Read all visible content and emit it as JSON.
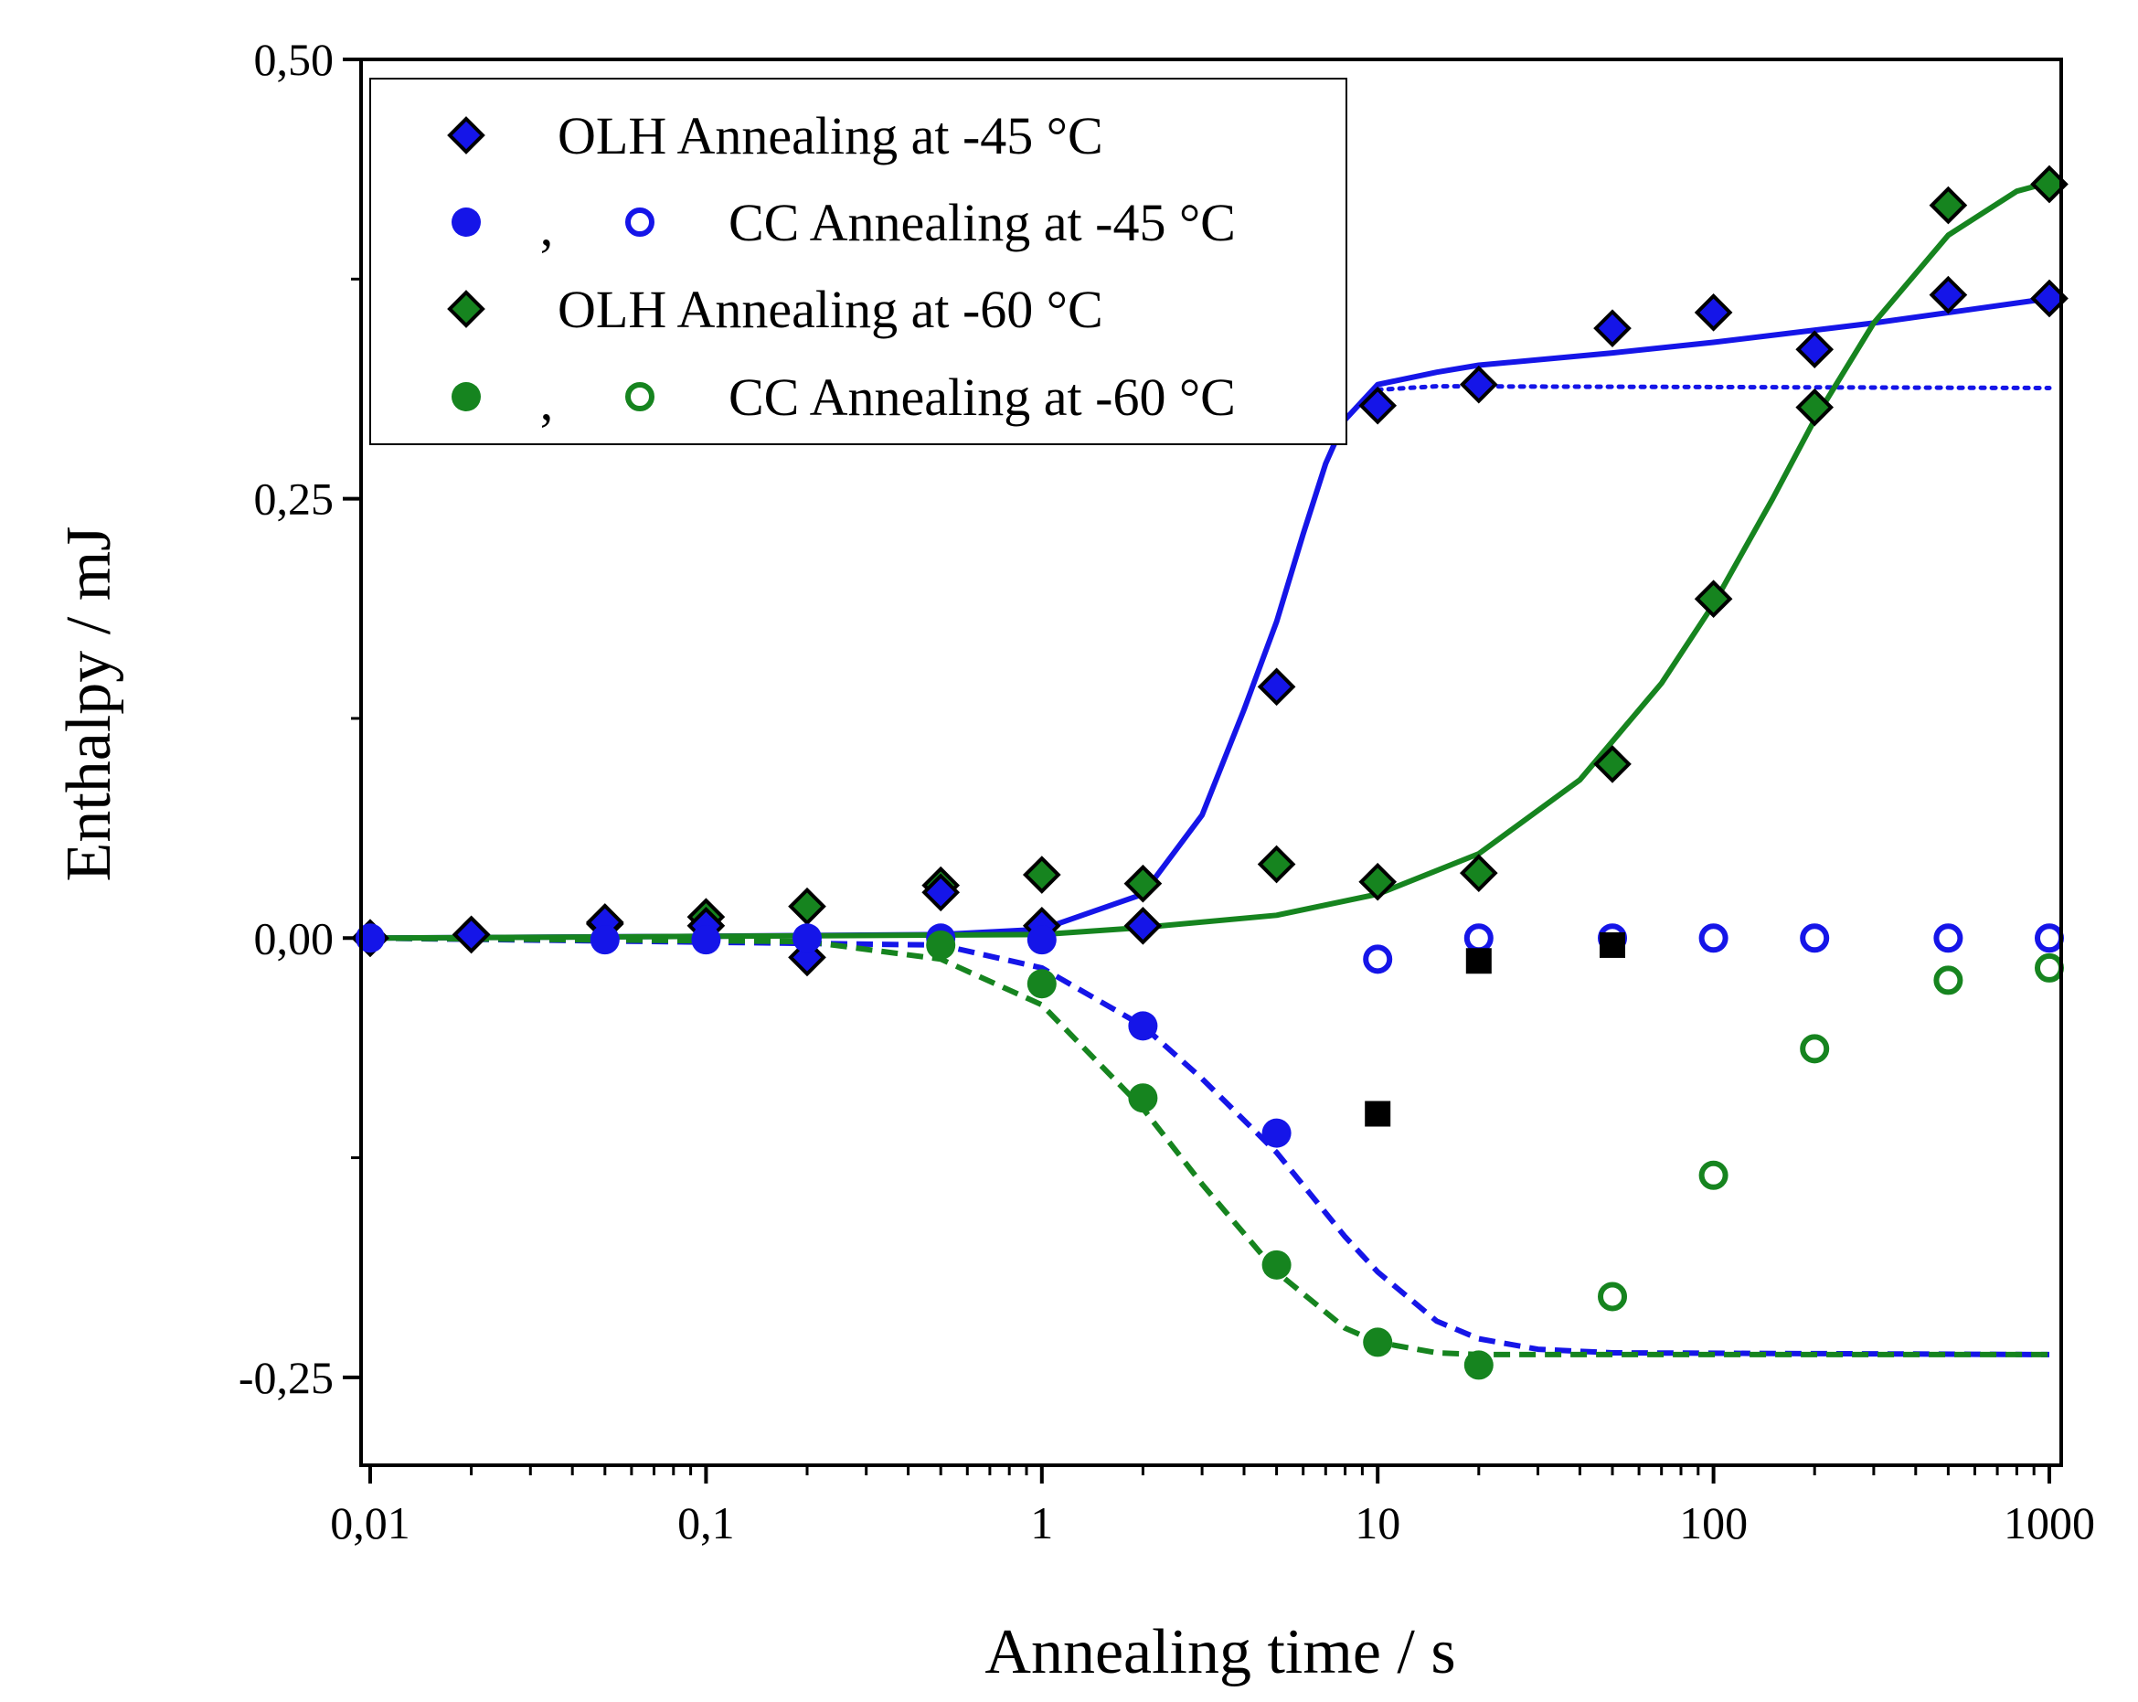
{
  "chart_data": {
    "type": "scatter",
    "xscale": "log",
    "xlim": [
      0.01,
      1000
    ],
    "ylim": [
      -0.3,
      0.5
    ],
    "xlabel": "Annealing time / s",
    "ylabel": "Enthalpy / mJ",
    "xticks": [
      {
        "value": 0.01,
        "label": "0,01"
      },
      {
        "value": 0.1,
        "label": "0,1"
      },
      {
        "value": 1,
        "label": "1"
      },
      {
        "value": 10,
        "label": "10"
      },
      {
        "value": 100,
        "label": "100"
      },
      {
        "value": 1000,
        "label": "1000"
      }
    ],
    "yticks": [
      {
        "value": 0.5,
        "label": "0,50"
      },
      {
        "value": 0.25,
        "label": "0,25"
      },
      {
        "value": 0.0,
        "label": "0,00"
      },
      {
        "value": -0.25,
        "label": "-0,25"
      }
    ],
    "yminor": [
      0.375,
      0.125,
      -0.125
    ],
    "colors": {
      "blue": "#1515e8",
      "green": "#16841f",
      "black": "#000000"
    },
    "legend": {
      "position": "top-left",
      "entries": [
        {
          "text": "OLH Annealing at -45 °C",
          "markers": [
            "diamond-blue"
          ]
        },
        {
          "text": "CC Annealing at -45 °C",
          "markers": [
            "circle-blue",
            "ring-blue"
          ],
          "separator": ","
        },
        {
          "text": "OLH Annealing at -60 °C",
          "markers": [
            "diamond-green"
          ]
        },
        {
          "text": "CC Annealing at -60 °C",
          "markers": [
            "circle-green",
            "ring-green"
          ],
          "separator": ","
        }
      ]
    },
    "series": [
      {
        "name": "OLH Annealing at -60 °C",
        "marker": "diamond",
        "color": "green",
        "points": [
          [
            0.01,
            0.0
          ],
          [
            0.02,
            0.002
          ],
          [
            0.05,
            0.008
          ],
          [
            0.1,
            0.012
          ],
          [
            0.2,
            0.018
          ],
          [
            0.5,
            0.03
          ],
          [
            1,
            0.036
          ],
          [
            2,
            0.031
          ],
          [
            5,
            0.042
          ],
          [
            10,
            0.032
          ],
          [
            20,
            0.037
          ],
          [
            50,
            0.099
          ],
          [
            100,
            0.193
          ],
          [
            200,
            0.302
          ],
          [
            500,
            0.417
          ],
          [
            1000,
            0.429
          ]
        ]
      },
      {
        "name": "OLH Annealing at -45 °C",
        "marker": "diamond",
        "color": "blue",
        "points": [
          [
            0.01,
            0.0
          ],
          [
            0.02,
            0.002
          ],
          [
            0.05,
            0.009
          ],
          [
            0.1,
            0.007
          ],
          [
            0.2,
            -0.011
          ],
          [
            0.5,
            0.026
          ],
          [
            1,
            0.007
          ],
          [
            2,
            0.007
          ],
          [
            5,
            0.143
          ],
          [
            10,
            0.303
          ],
          [
            20,
            0.315
          ],
          [
            50,
            0.347
          ],
          [
            100,
            0.356
          ],
          [
            200,
            0.335
          ],
          [
            500,
            0.366
          ],
          [
            1000,
            0.364
          ]
        ]
      },
      {
        "name": "CC Annealing at -45 °C (filled)",
        "marker": "circle",
        "color": "blue",
        "points": [
          [
            0.01,
            0.0
          ],
          [
            0.05,
            -0.001
          ],
          [
            0.1,
            -0.001
          ],
          [
            0.2,
            0.0
          ],
          [
            0.5,
            0.0
          ],
          [
            1,
            -0.001
          ],
          [
            2,
            -0.05
          ],
          [
            5,
            -0.111
          ]
        ]
      },
      {
        "name": "CC Annealing at -45 °C (open)",
        "marker": "ring",
        "color": "blue",
        "points": [
          [
            10,
            -0.012
          ],
          [
            20,
            0.0
          ],
          [
            50,
            0.0
          ],
          [
            100,
            0.0
          ],
          [
            200,
            0.0
          ],
          [
            500,
            0.0
          ],
          [
            1000,
            0.0
          ]
        ]
      },
      {
        "name": "CC Annealing at -60 °C (filled)",
        "marker": "circle",
        "color": "green",
        "points": [
          [
            0.5,
            -0.004
          ],
          [
            1,
            -0.026
          ],
          [
            2,
            -0.091
          ],
          [
            5,
            -0.186
          ],
          [
            10,
            -0.23
          ],
          [
            20,
            -0.243
          ]
        ]
      },
      {
        "name": "CC Annealing at -60 °C (open)",
        "marker": "ring",
        "color": "green",
        "points": [
          [
            50,
            -0.204
          ],
          [
            100,
            -0.135
          ],
          [
            200,
            -0.063
          ],
          [
            500,
            -0.024
          ],
          [
            1000,
            -0.017
          ]
        ]
      },
      {
        "name": "black squares",
        "marker": "square",
        "color": "black",
        "points": [
          [
            10,
            -0.1
          ],
          [
            20,
            -0.013
          ],
          [
            50,
            -0.004
          ]
        ]
      }
    ],
    "fit_curves": [
      {
        "name": "OLH -45 °C fit",
        "color": "blue",
        "style": "solid",
        "points": [
          [
            0.01,
            0.0
          ],
          [
            0.1,
            0.001
          ],
          [
            0.5,
            0.002
          ],
          [
            1,
            0.005
          ],
          [
            2,
            0.025
          ],
          [
            3,
            0.07
          ],
          [
            4,
            0.13
          ],
          [
            5,
            0.18
          ],
          [
            6,
            0.23
          ],
          [
            7,
            0.27
          ],
          [
            8,
            0.295
          ],
          [
            10,
            0.315
          ],
          [
            15,
            0.322
          ],
          [
            20,
            0.326
          ],
          [
            50,
            0.333
          ],
          [
            100,
            0.339
          ],
          [
            300,
            0.35
          ],
          [
            1000,
            0.364
          ]
        ]
      },
      {
        "name": "CC -45 °C plateau",
        "color": "blue",
        "style": "dotted",
        "points": [
          [
            10,
            0.312
          ],
          [
            15,
            0.314
          ],
          [
            1000,
            0.313
          ]
        ]
      },
      {
        "name": "OLH -60 °C fit",
        "color": "green",
        "style": "solid",
        "points": [
          [
            0.01,
            0.0
          ],
          [
            1,
            0.002
          ],
          [
            2,
            0.006
          ],
          [
            5,
            0.013
          ],
          [
            10,
            0.025
          ],
          [
            20,
            0.048
          ],
          [
            40,
            0.09
          ],
          [
            70,
            0.145
          ],
          [
            100,
            0.19
          ],
          [
            150,
            0.25
          ],
          [
            200,
            0.295
          ],
          [
            300,
            0.35
          ],
          [
            500,
            0.4
          ],
          [
            800,
            0.425
          ],
          [
            1000,
            0.43
          ]
        ]
      },
      {
        "name": "CC -45 °C fit",
        "color": "blue",
        "style": "dashed",
        "points": [
          [
            0.01,
            0.0
          ],
          [
            0.5,
            -0.004
          ],
          [
            1,
            -0.017
          ],
          [
            2,
            -0.05
          ],
          [
            3,
            -0.08
          ],
          [
            5,
            -0.122
          ],
          [
            8,
            -0.17
          ],
          [
            10,
            -0.19
          ],
          [
            15,
            -0.218
          ],
          [
            20,
            -0.228
          ],
          [
            30,
            -0.234
          ],
          [
            50,
            -0.236
          ],
          [
            1000,
            -0.237
          ]
        ]
      },
      {
        "name": "CC -60 °C fit",
        "color": "green",
        "style": "dashed",
        "points": [
          [
            0.01,
            0.0
          ],
          [
            0.2,
            -0.002
          ],
          [
            0.5,
            -0.012
          ],
          [
            1,
            -0.038
          ],
          [
            2,
            -0.097
          ],
          [
            3,
            -0.14
          ],
          [
            5,
            -0.19
          ],
          [
            8,
            -0.222
          ],
          [
            10,
            -0.23
          ],
          [
            15,
            -0.236
          ],
          [
            20,
            -0.237
          ],
          [
            1000,
            -0.237
          ]
        ]
      }
    ]
  }
}
